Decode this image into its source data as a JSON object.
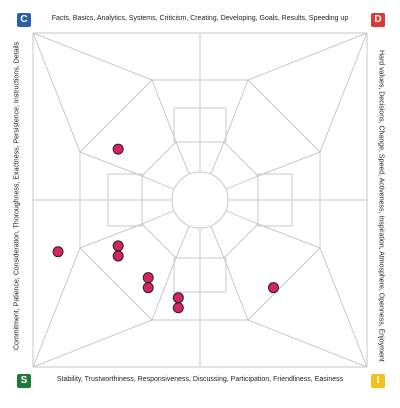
{
  "badges": {
    "c": {
      "letter": "C",
      "color": "#2a5fb0"
    },
    "d": {
      "letter": "D",
      "color": "#d93a36"
    },
    "s": {
      "letter": "S",
      "color": "#1f7a3a"
    },
    "i": {
      "letter": "I",
      "color": "#f2c21b"
    }
  },
  "labels": {
    "top": "Facts, Basics, Analytics, Systems, Criticism, Creating, Developing, Goals, Results, Speeding up",
    "right": "Hard values, Decisions, Change, Speed, Activeness, Inspiration, Atmosphere, Openness, Enjoyment",
    "bottom": "Stability, Trustworthiness, Responsiveness, Discussing, Participation, Friendliness, Easiness",
    "left": "Commitment, Patience, Consideration, Thoroughness, Exactness, Persistence, Instructions, Details"
  },
  "chart_data": {
    "type": "scatter",
    "point_color": "#d6245e",
    "x_range": [
      -1,
      1
    ],
    "y_range": [
      -1,
      1
    ],
    "points": [
      {
        "x": -0.49,
        "y": 0.305
      },
      {
        "x": -0.85,
        "y": -0.31
      },
      {
        "x": -0.49,
        "y": -0.275
      },
      {
        "x": -0.49,
        "y": -0.335
      },
      {
        "x": -0.31,
        "y": -0.465
      },
      {
        "x": -0.31,
        "y": -0.525
      },
      {
        "x": -0.13,
        "y": -0.585
      },
      {
        "x": -0.13,
        "y": -0.645
      },
      {
        "x": 0.44,
        "y": -0.525
      }
    ]
  }
}
